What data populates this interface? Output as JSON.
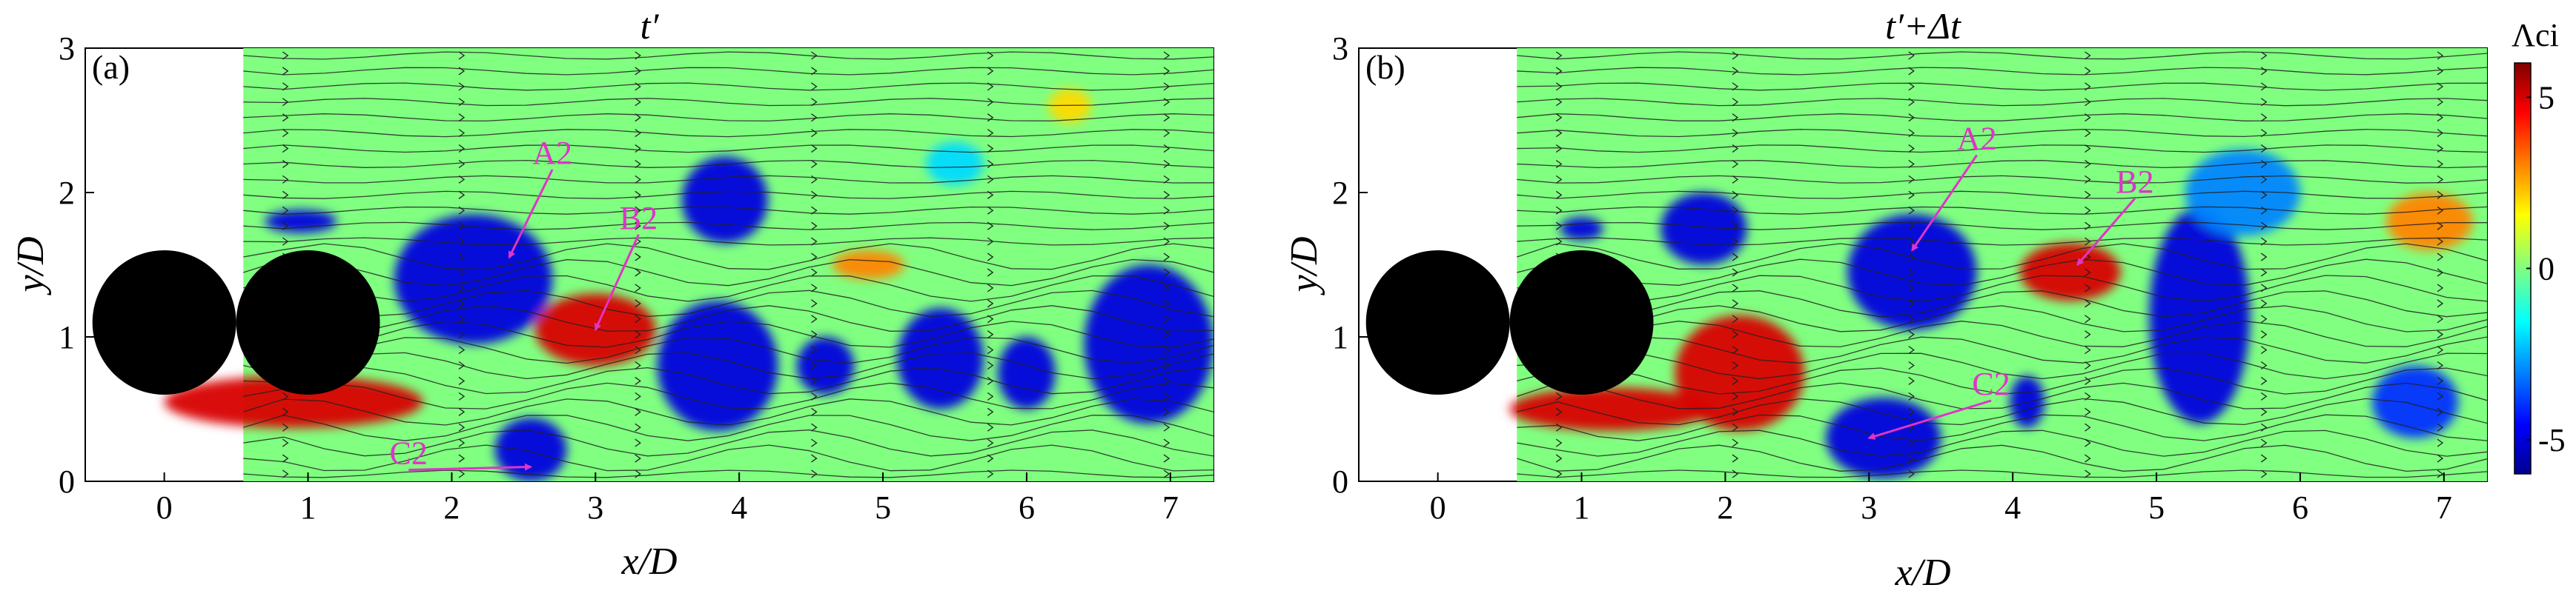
{
  "chart_data": [
    {
      "type": "heatmap",
      "panel_label": "(a)",
      "title": "t′",
      "xlabel": "x/D",
      "ylabel": "y/D",
      "xlim": [
        -0.55,
        7.3
      ],
      "ylim": [
        0,
        3
      ],
      "xticks": [
        0,
        1,
        2,
        3,
        4,
        5,
        6,
        7
      ],
      "yticks": [
        0,
        1,
        2,
        3
      ],
      "cylinders": [
        {
          "x": 0,
          "y": 1.1,
          "d": 1.0
        },
        {
          "x": 1,
          "y": 1.1,
          "d": 1.0
        }
      ],
      "measurement_region": {
        "x": [
          0.55,
          7.3
        ],
        "y": [
          0,
          3
        ]
      },
      "vortices": [
        {
          "x": 0.9,
          "y": 0.55,
          "rx": 0.9,
          "ry": 0.18,
          "value": 5
        },
        {
          "x": 3.0,
          "y": 1.05,
          "rx": 0.42,
          "ry": 0.25,
          "value": 5
        },
        {
          "x": 2.15,
          "y": 1.4,
          "rx": 0.55,
          "ry": 0.45,
          "value": -5
        },
        {
          "x": 3.85,
          "y": 0.8,
          "rx": 0.42,
          "ry": 0.45,
          "value": -5
        },
        {
          "x": 3.9,
          "y": 1.95,
          "rx": 0.3,
          "ry": 0.3,
          "value": -5
        },
        {
          "x": 2.55,
          "y": 0.22,
          "rx": 0.25,
          "ry": 0.22,
          "value": -5
        },
        {
          "x": 0.95,
          "y": 1.8,
          "rx": 0.25,
          "ry": 0.08,
          "value": -5
        },
        {
          "x": 4.6,
          "y": 0.8,
          "rx": 0.2,
          "ry": 0.2,
          "value": -5
        },
        {
          "x": 5.4,
          "y": 0.85,
          "rx": 0.3,
          "ry": 0.35,
          "value": -5
        },
        {
          "x": 6.85,
          "y": 0.95,
          "rx": 0.45,
          "ry": 0.55,
          "value": -5
        },
        {
          "x": 6.0,
          "y": 0.75,
          "rx": 0.2,
          "ry": 0.25,
          "value": -5
        },
        {
          "x": 4.9,
          "y": 1.5,
          "rx": 0.25,
          "ry": 0.1,
          "value": 3
        },
        {
          "x": 6.3,
          "y": 2.6,
          "rx": 0.15,
          "ry": 0.12,
          "value": 2
        },
        {
          "x": 5.5,
          "y": 2.2,
          "rx": 0.2,
          "ry": 0.15,
          "value": -2
        }
      ],
      "annotations": [
        {
          "text": "A2",
          "label_x": 2.7,
          "label_y": 2.2,
          "arrow_x": 2.4,
          "arrow_y": 1.55
        },
        {
          "text": "B2",
          "label_x": 3.3,
          "label_y": 1.75,
          "arrow_x": 3.0,
          "arrow_y": 1.05
        },
        {
          "text": "C2",
          "label_x": 1.7,
          "label_y": 0.12,
          "arrow_x": 2.55,
          "arrow_y": 0.1
        }
      ]
    },
    {
      "type": "heatmap",
      "panel_label": "(b)",
      "title": "t′+Δt",
      "xlabel": "x/D",
      "ylabel": "y/D",
      "xlim": [
        -0.55,
        7.3
      ],
      "ylim": [
        0,
        3
      ],
      "xticks": [
        0,
        1,
        2,
        3,
        4,
        5,
        6,
        7
      ],
      "yticks": [
        0,
        1,
        2,
        3
      ],
      "cylinders": [
        {
          "x": 0,
          "y": 1.1,
          "d": 1.0
        },
        {
          "x": 1,
          "y": 1.1,
          "d": 1.0
        }
      ],
      "measurement_region": {
        "x": [
          0.55,
          7.3
        ],
        "y": [
          0,
          3
        ]
      },
      "vortices": [
        {
          "x": 1.2,
          "y": 0.5,
          "rx": 0.7,
          "ry": 0.15,
          "value": 5
        },
        {
          "x": 2.1,
          "y": 0.75,
          "rx": 0.45,
          "ry": 0.4,
          "value": 5
        },
        {
          "x": 4.4,
          "y": 1.45,
          "rx": 0.35,
          "ry": 0.2,
          "value": 5
        },
        {
          "x": 3.3,
          "y": 1.45,
          "rx": 0.45,
          "ry": 0.4,
          "value": -5
        },
        {
          "x": 1.85,
          "y": 1.75,
          "rx": 0.3,
          "ry": 0.25,
          "value": -5
        },
        {
          "x": 3.1,
          "y": 0.3,
          "rx": 0.4,
          "ry": 0.28,
          "value": -5
        },
        {
          "x": 5.3,
          "y": 1.15,
          "rx": 0.35,
          "ry": 0.75,
          "value": -5
        },
        {
          "x": 5.6,
          "y": 2.0,
          "rx": 0.4,
          "ry": 0.3,
          "value": -3
        },
        {
          "x": 4.1,
          "y": 0.55,
          "rx": 0.12,
          "ry": 0.18,
          "value": -5
        },
        {
          "x": 6.8,
          "y": 0.55,
          "rx": 0.3,
          "ry": 0.25,
          "value": -4
        },
        {
          "x": 6.9,
          "y": 1.8,
          "rx": 0.3,
          "ry": 0.2,
          "value": 3
        },
        {
          "x": 1.0,
          "y": 1.75,
          "rx": 0.15,
          "ry": 0.08,
          "value": -5
        }
      ],
      "annotations": [
        {
          "text": "A2",
          "label_x": 3.75,
          "label_y": 2.3,
          "arrow_x": 3.3,
          "arrow_y": 1.6
        },
        {
          "text": "B2",
          "label_x": 4.85,
          "label_y": 2.0,
          "arrow_x": 4.45,
          "arrow_y": 1.5
        },
        {
          "text": "C2",
          "label_x": 3.85,
          "label_y": 0.6,
          "arrow_x": 3.0,
          "arrow_y": 0.3
        }
      ]
    }
  ],
  "colorbar": {
    "label": "Λci",
    "vmin": -6,
    "vmax": 6,
    "ticks": [
      5,
      0,
      -5
    ]
  }
}
